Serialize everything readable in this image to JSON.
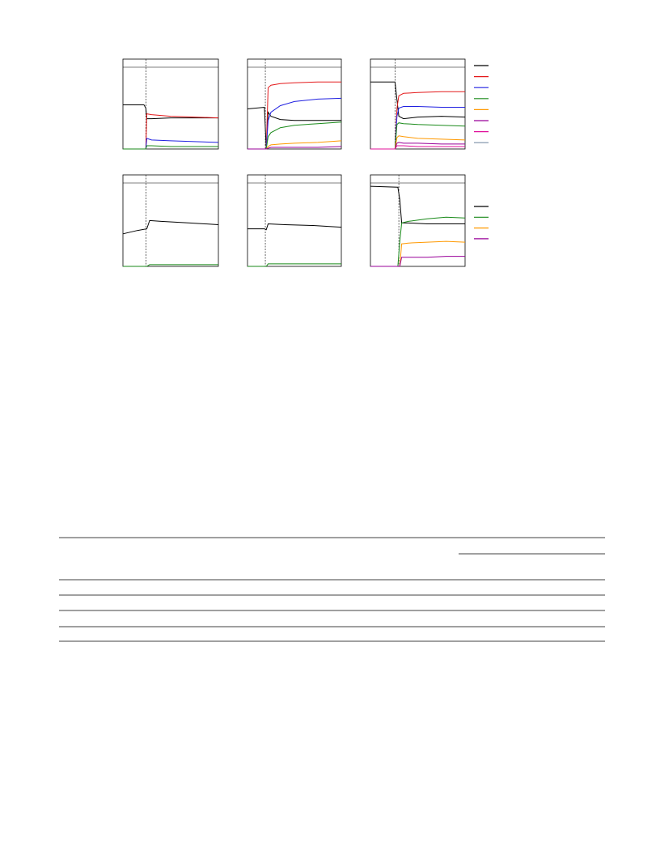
{
  "figure": {
    "panels": [
      {
        "marker_x": 24,
        "x": [
          0,
          22,
          24,
          25,
          30,
          50,
          75,
          100
        ],
        "series": [
          {
            "color": "#000000",
            "values": [
              54,
              54,
              50,
              37,
              37,
              38,
              38,
              38
            ]
          },
          {
            "color": "#e41a1c",
            "values": [
              0,
              0,
              0,
              43,
              42,
              40,
              39,
              38
            ]
          },
          {
            "color": "#1f1fe0",
            "values": [
              0,
              0,
              0,
              13,
              11,
              10,
              9,
              8
            ]
          },
          {
            "color": "#1a8a1a",
            "values": [
              0,
              0,
              0,
              4,
              4,
              3,
              3,
              3
            ]
          }
        ]
      },
      {
        "marker_x": 19,
        "x": [
          0,
          18,
          20,
          22,
          25,
          35,
          50,
          75,
          100
        ],
        "series": [
          {
            "color": "#000000",
            "values": [
              49,
              51,
              0,
              45,
              40,
              36,
              35,
              35,
              35
            ]
          },
          {
            "color": "#e41a1c",
            "values": [
              0,
              0,
              0,
              75,
              78,
              80,
              81,
              82,
              82
            ]
          },
          {
            "color": "#1f1fe0",
            "values": [
              0,
              0,
              0,
              35,
              45,
              53,
              58,
              61,
              62
            ]
          },
          {
            "color": "#1a8a1a",
            "values": [
              0,
              0,
              0,
              15,
              20,
              26,
              29,
              31,
              33
            ]
          },
          {
            "color": "#ff9900",
            "values": [
              0,
              0,
              0,
              3,
              5,
              6,
              7,
              8,
              10
            ]
          },
          {
            "color": "#990099",
            "values": [
              0,
              0,
              0,
              1,
              2,
              2,
              2,
              2,
              3
            ]
          }
        ]
      },
      {
        "marker_x": 26,
        "x": [
          0,
          26,
          28,
          30,
          35,
          50,
          75,
          100
        ],
        "series": [
          {
            "color": "#000000",
            "values": [
              82,
              82,
              60,
              40,
              37,
              39,
              40,
              39
            ]
          },
          {
            "color": "#e41a1c",
            "values": [
              0,
              0,
              50,
              65,
              68,
              69,
              70,
              70
            ]
          },
          {
            "color": "#1f1fe0",
            "values": [
              0,
              0,
              40,
              50,
              52,
              52,
              51,
              51
            ]
          },
          {
            "color": "#1a8a1a",
            "values": [
              0,
              0,
              30,
              32,
              31,
              30,
              29,
              28
            ]
          },
          {
            "color": "#ff9900",
            "values": [
              0,
              0,
              14,
              16,
              15,
              13,
              12,
              11
            ]
          },
          {
            "color": "#990099",
            "values": [
              0,
              0,
              7,
              8,
              7,
              7,
              6,
              6
            ]
          },
          {
            "color": "#e0109a",
            "values": [
              0,
              0,
              4,
              4,
              4,
              3,
              3,
              3
            ]
          }
        ]
      },
      {
        "marker_x": 24,
        "x": [
          0,
          15,
          25,
          28,
          40,
          70,
          100
        ],
        "series": [
          {
            "color": "#000000",
            "values": [
              39,
              43,
              45,
              55,
              54,
              52,
              50
            ]
          },
          {
            "color": "#1a8a1a",
            "values": [
              0,
              0,
              0,
              2,
              2,
              2,
              2
            ]
          }
        ]
      },
      {
        "marker_x": 19,
        "x": [
          0,
          18,
          20,
          22,
          40,
          70,
          100
        ],
        "series": [
          {
            "color": "#000000",
            "values": [
              45,
              45,
              44,
              51,
              50,
              49,
              47
            ]
          },
          {
            "color": "#1a8a1a",
            "values": [
              0,
              0,
              0,
              3,
              3,
              3,
              3
            ]
          }
        ]
      },
      {
        "marker_x": 30,
        "x": [
          0,
          29,
          31,
          33,
          40,
          60,
          80,
          100
        ],
        "series": [
          {
            "color": "#000000",
            "values": [
              96,
              95,
              80,
              52,
              52,
              51,
              51,
              51
            ]
          },
          {
            "color": "#1a8a1a",
            "values": [
              0,
              0,
              30,
              52,
              54,
              57,
              59,
              58
            ]
          },
          {
            "color": "#ff9900",
            "values": [
              0,
              0,
              0,
              27,
              28,
              29,
              30,
              29
            ]
          },
          {
            "color": "#990099",
            "values": [
              0,
              0,
              0,
              11,
              11,
              11,
              12,
              12
            ]
          }
        ]
      }
    ],
    "legends": [
      {
        "colors": [
          "#000000",
          "#e41a1c",
          "#1f1fe0",
          "#1a8a1a",
          "#ff9900",
          "#990099",
          "#e0109a",
          "#7a8fa6"
        ]
      },
      {
        "colors": [
          "#000000",
          "#1a8a1a",
          "#ff9900",
          "#990099"
        ]
      }
    ]
  }
}
